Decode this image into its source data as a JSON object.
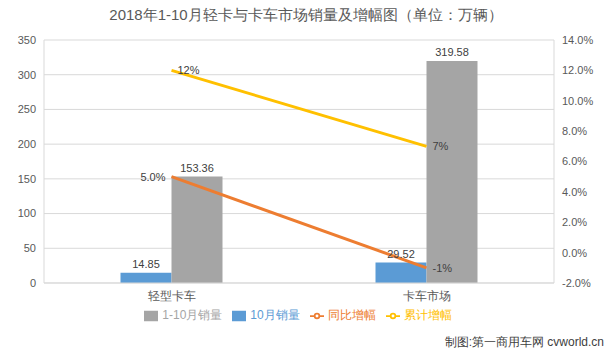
{
  "chart_data": {
    "type": "bar",
    "title": "2018年1-10月轻卡与卡车市场销量及增幅图（单位：万辆）",
    "annotation": "制图:第一商用车网 cvworld.cn",
    "categories": [
      "轻型卡车",
      "卡车市场"
    ],
    "series": [
      {
        "name": "10月销量",
        "type": "bar",
        "color": "#5b9bd5",
        "values": [
          14.85,
          29.52
        ]
      },
      {
        "name": "1-10月销量",
        "type": "bar",
        "color": "#a5a5a5",
        "values": [
          153.36,
          319.58
        ]
      },
      {
        "name": "同比增幅",
        "type": "line",
        "axis": "y2",
        "color": "#ed7d31",
        "values": [
          5,
          -1
        ],
        "value_labels": [
          "5.0%",
          "-1%"
        ]
      },
      {
        "name": "累计增幅",
        "type": "line",
        "axis": "y2",
        "color": "#ffc000",
        "values": [
          12,
          7
        ],
        "value_labels": [
          "12%",
          "7%"
        ]
      }
    ],
    "ylim": [
      0,
      350
    ],
    "yticks": [
      0,
      50,
      100,
      150,
      200,
      250,
      300,
      350
    ],
    "y2lim": [
      -2,
      14
    ],
    "y2ticks": [
      {
        "value": -2,
        "label": "-2.0%"
      },
      {
        "value": 0,
        "label": "0.0%"
      },
      {
        "value": 2,
        "label": "2.0%"
      },
      {
        "value": 4,
        "label": "4.0%"
      },
      {
        "value": 6,
        "label": "6.0%"
      },
      {
        "value": 8,
        "label": "8.0%"
      },
      {
        "value": 10,
        "label": "10.0%"
      },
      {
        "value": 12,
        "label": "12.0%"
      },
      {
        "value": 14,
        "label": "14.0%"
      }
    ],
    "grid": true,
    "legend": "bottom",
    "data_labels": true
  }
}
